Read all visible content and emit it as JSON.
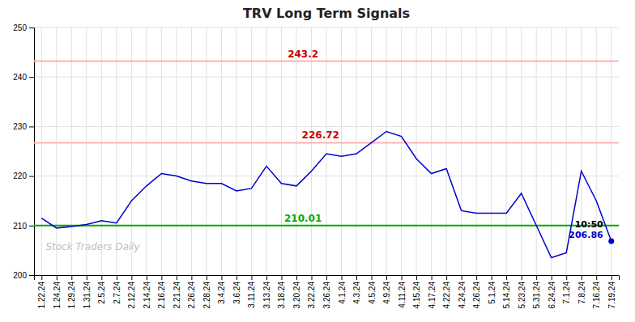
{
  "chart_data": {
    "type": "line",
    "title": "TRV Long Term Signals",
    "categories": [
      "1.22.24",
      "1.24.24",
      "1.29.24",
      "1.31.24",
      "2.5.24",
      "2.7.24",
      "2.12.24",
      "2.14.24",
      "2.16.24",
      "2.21.24",
      "2.26.24",
      "2.28.24",
      "3.4.24",
      "3.6.24",
      "3.11.24",
      "3.13.24",
      "3.18.24",
      "3.20.24",
      "3.22.24",
      "3.26.24",
      "4.1.24",
      "4.3.24",
      "4.5.24",
      "4.9.24",
      "4.11.24",
      "4.15.24",
      "4.17.24",
      "4.22.24",
      "4.24.24",
      "4.26.24",
      "5.1.24",
      "5.14.24",
      "5.23.24",
      "5.31.24",
      "6.24.24",
      "7.1.24",
      "7.8.24",
      "7.16.24",
      "7.19.24"
    ],
    "values": [
      211.5,
      209.5,
      209.8,
      210.2,
      211.0,
      210.5,
      215.0,
      218.0,
      220.5,
      220.0,
      219.0,
      218.5,
      218.5,
      217.0,
      217.5,
      222.0,
      218.5,
      218.0,
      221.0,
      224.5,
      224.0,
      224.5,
      226.72,
      229.0,
      228.0,
      223.5,
      220.5,
      221.5,
      213.0,
      212.5,
      212.5,
      212.5,
      216.5,
      210.0,
      203.5,
      204.5,
      221.0,
      215.0,
      206.86
    ],
    "color": "#0000cc",
    "ylim": [
      200,
      250
    ],
    "yticks": [
      200,
      210,
      220,
      230,
      240,
      250
    ],
    "grid": true,
    "hlines": [
      {
        "value": 226.72,
        "label": "226.72",
        "color": "#ffb3b3",
        "label_color": "#cc0000"
      },
      {
        "value": 243.2,
        "label": "243.2",
        "color": "#ffb3b3",
        "label_color": "#cc0000"
      },
      {
        "value": 210.01,
        "label": "210.01",
        "color": "#00aa00",
        "label_color": "#00aa00"
      }
    ],
    "annotations": [
      {
        "text": "10:50",
        "color": "#000000"
      },
      {
        "text": "206.86",
        "color": "#0000cc"
      }
    ],
    "watermark": "Stock Traders Daily"
  }
}
